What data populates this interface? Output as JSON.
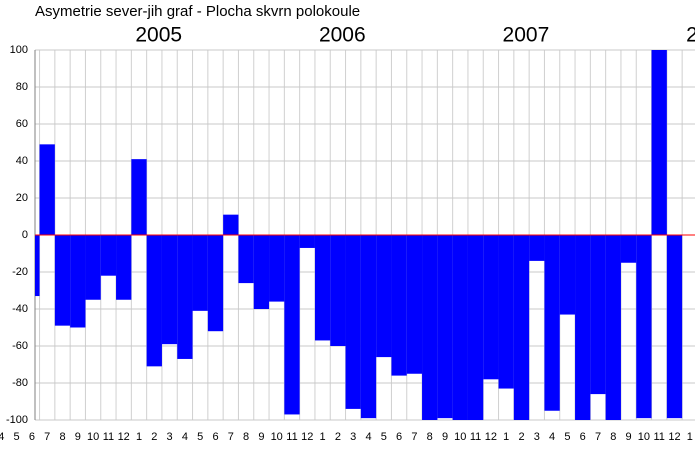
{
  "chart_data": {
    "type": "bar",
    "title": "Asymetrie  sever-jih  graf  -  Plocha skvrn  polokoule",
    "categories": [
      "4",
      "5",
      "6",
      "7",
      "8",
      "9",
      "10",
      "11",
      "12",
      "1",
      "2",
      "3",
      "4",
      "5",
      "6",
      "7",
      "8",
      "9",
      "10",
      "11",
      "12",
      "1",
      "2",
      "3",
      "4",
      "5",
      "6",
      "7",
      "8",
      "9",
      "10",
      "11",
      "12",
      "1",
      "2",
      "3",
      "4",
      "5",
      "6",
      "7",
      "8",
      "9",
      "10",
      "11",
      "12",
      "1"
    ],
    "values": [
      null,
      null,
      -33,
      49,
      -49,
      -50,
      -35,
      -22,
      -35,
      41,
      -71,
      -59,
      -67,
      -41,
      -52,
      11,
      -26,
      -40,
      -36,
      -97,
      -7,
      -57,
      -60,
      -94,
      -99,
      -66,
      -76,
      -75,
      -100,
      -99,
      -100,
      -100,
      -78,
      -83,
      -100,
      -14,
      -95,
      -43,
      -100,
      -86,
      -100,
      -15,
      -99,
      100,
      -99,
      null
    ],
    "year_labels": [
      {
        "label": "2005",
        "category": 9
      },
      {
        "label": "2006",
        "category": 21
      },
      {
        "label": "2007",
        "category": 33
      },
      {
        "label": "2",
        "category": 45
      }
    ],
    "color": "#0000ff",
    "zero_line_color": "#ff0000",
    "ylim": [
      -100,
      100
    ],
    "yticks": [
      -100,
      -80,
      -60,
      -40,
      -20,
      0,
      20,
      40,
      60,
      80,
      100
    ],
    "grid": true
  }
}
